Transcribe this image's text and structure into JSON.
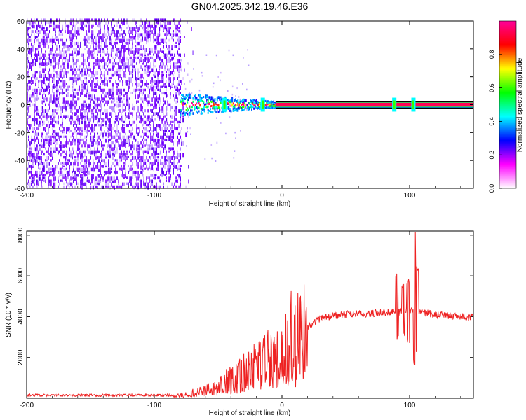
{
  "title": "GN04.2025.342.19.46.E36",
  "chart_data": [
    {
      "type": "heatmap",
      "name": "spectrogram",
      "xlabel": "Height of straight line (km)",
      "ylabel": "Frequency (Hz)",
      "xlim": [
        -200,
        150
      ],
      "ylim": [
        -60,
        60
      ],
      "x_ticks": [
        -200,
        -100,
        0,
        100
      ],
      "y_ticks": [
        -60,
        -40,
        -20,
        0,
        20,
        40,
        60
      ],
      "noise_region_x": [
        -200,
        -80
      ],
      "transition_region_x": [
        -80,
        -5
      ],
      "signal_line_frequency": 0,
      "signal_band_half_width": 2,
      "spur_positions_x": [
        -45,
        -15,
        88,
        103
      ],
      "colorbar": {
        "label": "Normalized spectral amplitude",
        "range": [
          0,
          1
        ],
        "ticks": [
          0.0,
          0.2,
          0.4,
          0.6,
          0.8
        ],
        "tick_labels": [
          "0.0",
          "0.2",
          "0.4",
          "0.6",
          "0.8"
        ],
        "colors": [
          "#ffffff",
          "#ff00ff",
          "#0000ff",
          "#00ffff",
          "#00ff00",
          "#ffff00",
          "#ff0000",
          "#ff0099"
        ]
      }
    },
    {
      "type": "line",
      "name": "snr",
      "xlabel": "Height of straight line (km)",
      "ylabel": "SNR (10 * v/v)",
      "xlim": [
        -200,
        150
      ],
      "ylim": [
        0,
        8200
      ],
      "x_ticks": [
        -200,
        -100,
        0,
        100
      ],
      "y_ticks": [
        2000,
        4000,
        6000,
        8000
      ],
      "color": "#ee2222",
      "series": [
        {
          "name": "SNR",
          "x": [
            -200,
            -150,
            -100,
            -85,
            -80,
            -70,
            -60,
            -50,
            -40,
            -30,
            -20,
            -10,
            0,
            10,
            20,
            30,
            40,
            50,
            60,
            70,
            80,
            88,
            95,
            100,
            103,
            105,
            110,
            120,
            130,
            140,
            150
          ],
          "values": [
            150,
            150,
            150,
            150,
            170,
            250,
            400,
            650,
            900,
            1200,
            1550,
            2000,
            2400,
            3000,
            3500,
            3900,
            4050,
            4100,
            4150,
            4150,
            4200,
            4200,
            4250,
            4250,
            4300,
            4200,
            4200,
            4100,
            4050,
            4000,
            3950
          ]
        }
      ],
      "spikes": [
        {
          "x": 90,
          "min": 2800,
          "max": 6200
        },
        {
          "x": 95,
          "min": 3000,
          "max": 5600
        },
        {
          "x": 99,
          "min": 2600,
          "max": 5900
        },
        {
          "x": 104,
          "min": 1600,
          "max": 8200
        },
        {
          "x": 106,
          "min": 2000,
          "max": 6500
        }
      ]
    }
  ]
}
